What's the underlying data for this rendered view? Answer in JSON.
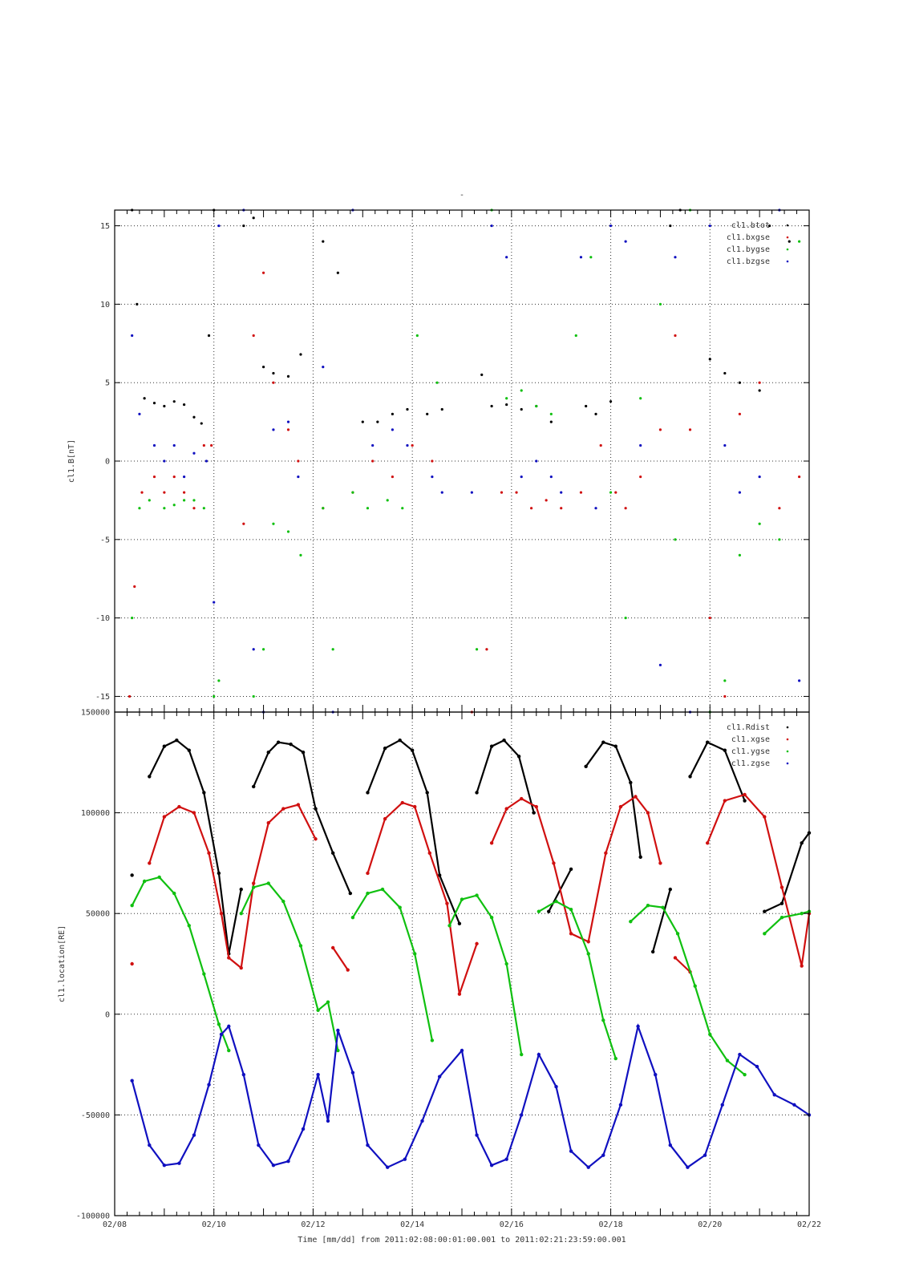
{
  "page": {
    "background": "#ffffff"
  },
  "figure": {
    "top_title": "-",
    "x_axis_label": "Time [mm/dd]  from 2011:02:08:00:01:00.001  to  2011:02:21:23:59:00.001",
    "x_tick_labels": [
      "02/08",
      "02/10",
      "02/12",
      "02/14",
      "02/16",
      "02/18",
      "02/20",
      "02/22"
    ]
  },
  "chart_data": [
    {
      "type": "scatter",
      "title": "",
      "ylabel": "cl1.B[nT]",
      "xlabel": "Time [mm/dd]  from 2011:02:08:00:01:00.001  to  2011:02:21:23:59:00.001",
      "x_unit": "days since 02/08",
      "xlim": [
        0,
        14
      ],
      "ylim": [
        -16,
        16
      ],
      "yticks": [
        -15,
        -10,
        -5,
        0,
        5,
        10,
        15
      ],
      "ytick_labels": [
        "-15",
        "-10",
        "-5",
        "0",
        "5",
        "10",
        "15"
      ],
      "grid": true,
      "legend": {
        "placement": "top-right",
        "entries": [
          "cl1.btot",
          "cl1.bxgse",
          "cl1.bygse",
          "cl1.bzgse"
        ]
      },
      "series": [
        {
          "name": "cl1.btot",
          "color": "#000000",
          "x": [
            0.35,
            0.45,
            0.6,
            0.8,
            1.0,
            1.2,
            1.4,
            1.6,
            1.75,
            1.9,
            2.0,
            2.6,
            2.8,
            3.0,
            3.2,
            3.5,
            3.75,
            4.2,
            4.5,
            5.0,
            5.3,
            5.6,
            5.9,
            6.3,
            6.6,
            7.4,
            7.6,
            7.9,
            8.2,
            8.5,
            8.8,
            9.5,
            9.7,
            10.0,
            11.2,
            11.4,
            12.0,
            12.3,
            12.6,
            13.0,
            13.2,
            13.6
          ],
          "y": [
            16,
            10,
            4,
            3.7,
            3.5,
            3.8,
            3.6,
            2.8,
            2.4,
            8,
            16,
            15,
            15.5,
            6,
            5.6,
            5.4,
            6.8,
            14,
            12,
            2.5,
            2.5,
            3,
            3.3,
            3,
            3.3,
            5.5,
            3.5,
            3.6,
            3.3,
            3.5,
            2.5,
            3.5,
            3,
            3.8,
            15,
            16,
            6.5,
            5.6,
            5,
            4.5,
            15,
            14
          ]
        },
        {
          "name": "cl1.bxgse",
          "color": "#d01010",
          "x": [
            0.3,
            0.4,
            0.55,
            0.8,
            1.0,
            1.2,
            1.4,
            1.6,
            1.8,
            1.95,
            2.6,
            2.8,
            3.0,
            3.2,
            3.5,
            3.7,
            4.2,
            4.8,
            5.2,
            5.6,
            6.0,
            6.4,
            7.2,
            7.5,
            7.8,
            8.1,
            8.4,
            8.7,
            9.0,
            9.4,
            9.8,
            10.1,
            10.3,
            10.6,
            11.0,
            11.3,
            11.6,
            12.0,
            12.3,
            12.6,
            13.0,
            13.4,
            13.8
          ],
          "y": [
            -15,
            -8,
            -2,
            -1,
            -2,
            -1,
            -2,
            -3,
            1,
            1,
            -4,
            8,
            12,
            5,
            2,
            0,
            -3,
            -2,
            0,
            -1,
            1,
            0,
            -16,
            -12,
            -2,
            -2,
            -3,
            -2.5,
            -3,
            -2,
            1,
            -2,
            -3,
            -1,
            2,
            8,
            2,
            -10,
            -15,
            3,
            5,
            -3,
            -1
          ]
        },
        {
          "name": "cl1.bygse",
          "color": "#10c010",
          "x": [
            0.35,
            0.5,
            0.7,
            1.0,
            1.2,
            1.4,
            1.6,
            1.8,
            2.0,
            2.1,
            2.8,
            3.0,
            3.2,
            3.5,
            3.75,
            4.2,
            4.4,
            4.8,
            5.1,
            5.5,
            5.8,
            6.1,
            6.5,
            7.3,
            7.6,
            7.9,
            8.2,
            8.5,
            8.8,
            9.3,
            9.6,
            10.0,
            10.3,
            10.6,
            11.0,
            11.3,
            11.6,
            12.0,
            12.3,
            12.6,
            13.0,
            13.4,
            13.8
          ],
          "y": [
            -10,
            -3,
            -2.5,
            -3,
            -2.8,
            -2.5,
            -2.5,
            -3,
            -15,
            -14,
            -15,
            -12,
            -4,
            -4.5,
            -6,
            -3,
            -12,
            -2,
            -3,
            -2.5,
            -3,
            8,
            5,
            -12,
            16,
            4,
            4.5,
            3.5,
            3,
            8,
            13,
            -2,
            -10,
            4,
            10,
            -5,
            16,
            -16,
            -14,
            -6,
            -4,
            -5,
            14
          ]
        },
        {
          "name": "cl1.bzgse",
          "color": "#1010c0",
          "x": [
            0.35,
            0.5,
            0.8,
            1.0,
            1.2,
            1.4,
            1.6,
            1.85,
            2.0,
            2.1,
            2.6,
            2.8,
            3.0,
            3.2,
            3.5,
            3.7,
            4.2,
            4.4,
            4.8,
            5.2,
            5.6,
            5.9,
            6.4,
            6.6,
            7.2,
            7.6,
            7.9,
            8.2,
            8.5,
            8.8,
            9.0,
            9.4,
            9.7,
            10.0,
            10.3,
            10.6,
            11.0,
            11.3,
            11.6,
            12.0,
            12.3,
            12.6,
            13.0,
            13.4,
            13.8
          ],
          "y": [
            8,
            3,
            1,
            0,
            1,
            -1,
            0.5,
            0,
            -9,
            15,
            16,
            -12,
            -16,
            2,
            2.5,
            -1,
            6,
            -16,
            16,
            1,
            2,
            1,
            -1,
            -2,
            -2,
            15,
            13,
            -1,
            0,
            -1,
            -2,
            13,
            -3,
            15,
            14,
            1,
            -13,
            13,
            -16,
            15,
            1,
            -2,
            -1,
            16,
            -14
          ]
        }
      ]
    },
    {
      "type": "scatter",
      "title": "",
      "ylabel": "cl1.location[RE]",
      "xlabel": "Time [mm/dd]  from 2011:02:08:00:01:00.001  to  2011:02:21:23:59:00.001",
      "x_unit": "days since 02/08",
      "xlim": [
        0,
        14
      ],
      "ylim": [
        -100000,
        150000
      ],
      "yticks": [
        -100000,
        -50000,
        0,
        50000,
        100000,
        150000
      ],
      "ytick_labels": [
        "-100000",
        "-50000",
        "0",
        "50000",
        "100000",
        "150000"
      ],
      "grid": true,
      "legend": {
        "placement": "top-right",
        "entries": [
          "cl1.Rdist",
          "cl1.xgse",
          "cl1.ygse",
          "cl1.zgse"
        ]
      },
      "series": [
        {
          "name": "cl1.Rdist",
          "color": "#000000",
          "x": [
            0.35,
            0.7,
            1.0,
            1.25,
            1.5,
            1.8,
            2.1,
            2.3,
            2.55,
            2.8,
            3.1,
            3.3,
            3.55,
            3.8,
            4.05,
            4.4,
            4.75,
            5.1,
            5.45,
            5.75,
            6.0,
            6.3,
            6.55,
            6.95,
            7.3,
            7.6,
            7.85,
            8.15,
            8.45,
            8.75,
            9.2,
            9.5,
            9.85,
            10.1,
            10.4,
            10.6,
            10.85,
            11.2,
            11.6,
            11.95,
            12.3,
            12.7,
            13.1,
            13.45,
            13.85,
            14.0
          ],
          "y": [
            69000,
            118000,
            133000,
            136000,
            131000,
            110000,
            70000,
            30000,
            62000,
            113000,
            130000,
            135000,
            134000,
            130000,
            102000,
            80000,
            60000,
            110000,
            132000,
            136000,
            131000,
            110000,
            69000,
            45000,
            110000,
            133000,
            136000,
            128000,
            100000,
            51000,
            72000,
            123000,
            135000,
            133000,
            115000,
            78000,
            31000,
            62000,
            118000,
            135000,
            131000,
            106000,
            51000,
            55000,
            85000,
            90000
          ]
        },
        {
          "name": "cl1.xgse",
          "color": "#d01010",
          "x": [
            0.35,
            0.7,
            1.0,
            1.3,
            1.6,
            1.9,
            2.15,
            2.3,
            2.55,
            2.8,
            3.1,
            3.4,
            3.7,
            4.05,
            4.4,
            4.7,
            5.1,
            5.45,
            5.8,
            6.05,
            6.35,
            6.7,
            6.95,
            7.3,
            7.6,
            7.9,
            8.2,
            8.5,
            8.85,
            9.2,
            9.55,
            9.9,
            10.2,
            10.5,
            10.75,
            11.0,
            11.3,
            11.6,
            11.95,
            12.3,
            12.7,
            13.1,
            13.45,
            13.85,
            14.0
          ],
          "y": [
            25000,
            75000,
            98000,
            103000,
            100000,
            80000,
            50000,
            28000,
            23000,
            65000,
            95000,
            102000,
            104000,
            87000,
            33000,
            22000,
            70000,
            97000,
            105000,
            103000,
            80000,
            55000,
            10000,
            35000,
            85000,
            102000,
            107000,
            103000,
            75000,
            40000,
            36000,
            80000,
            103000,
            108000,
            100000,
            75000,
            28000,
            21000,
            85000,
            106000,
            109000,
            98000,
            63000,
            24000,
            50000
          ]
        },
        {
          "name": "cl1.ygse",
          "color": "#10c010",
          "x": [
            0.35,
            0.6,
            0.9,
            1.2,
            1.5,
            1.8,
            2.1,
            2.3,
            2.55,
            2.8,
            3.1,
            3.4,
            3.75,
            4.1,
            4.3,
            4.5,
            4.8,
            5.1,
            5.4,
            5.75,
            6.05,
            6.4,
            6.75,
            7.0,
            7.3,
            7.6,
            7.9,
            8.2,
            8.55,
            8.9,
            9.2,
            9.55,
            9.85,
            10.1,
            10.4,
            10.75,
            11.05,
            11.35,
            11.7,
            12.0,
            12.35,
            12.7,
            13.1,
            13.45,
            13.85,
            14.0
          ],
          "y": [
            54000,
            66000,
            68000,
            60000,
            44000,
            20000,
            -5000,
            -18000,
            50000,
            63000,
            65000,
            56000,
            34000,
            2000,
            6000,
            -18000,
            48000,
            60000,
            62000,
            53000,
            30000,
            -13000,
            44000,
            57000,
            59000,
            48000,
            25000,
            -20000,
            51000,
            56000,
            52000,
            30000,
            -3000,
            -22000,
            46000,
            54000,
            53000,
            40000,
            14000,
            -10000,
            -23000,
            -30000,
            40000,
            48000,
            50000,
            51000
          ]
        },
        {
          "name": "cl1.zgse",
          "color": "#1010c0",
          "x": [
            0.35,
            0.7,
            1.0,
            1.3,
            1.6,
            1.9,
            2.15,
            2.3,
            2.6,
            2.9,
            3.2,
            3.5,
            3.8,
            4.1,
            4.3,
            4.5,
            4.8,
            5.1,
            5.5,
            5.85,
            6.2,
            6.55,
            7.0,
            7.3,
            7.6,
            7.9,
            8.2,
            8.55,
            8.9,
            9.2,
            9.55,
            9.85,
            10.2,
            10.55,
            10.9,
            11.2,
            11.55,
            11.9,
            12.25,
            12.6,
            12.95,
            13.3,
            13.7,
            14.0
          ],
          "y": [
            -33000,
            -65000,
            -75000,
            -74000,
            -60000,
            -35000,
            -10000,
            -6000,
            -30000,
            -65000,
            -75000,
            -73000,
            -57000,
            -30000,
            -53000,
            -8000,
            -29000,
            -65000,
            -76000,
            -72000,
            -53000,
            -31000,
            -18000,
            -60000,
            -75000,
            -72000,
            -50000,
            -20000,
            -36000,
            -68000,
            -76000,
            -70000,
            -45000,
            -6000,
            -30000,
            -65000,
            -76000,
            -70000,
            -45000,
            -20000,
            -26000,
            -40000,
            -45000,
            -50000
          ]
        }
      ]
    }
  ]
}
